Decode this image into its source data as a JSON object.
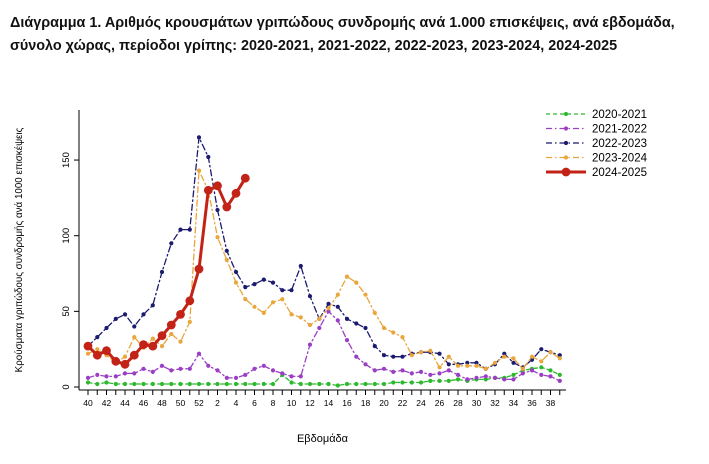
{
  "title": "Διάγραμμα 1. Αριθμός κρουσμάτων γριπώδους συνδρομής ανά 1.000 επισκέψεις, ανά εβδομάδα, σύνολο χώρας, περίοδοι γρίπης: 2020-2021, 2021-2022, 2022-2023, 2023-2024, 2024-2025",
  "chart_data": {
    "type": "line",
    "title": "Διάγραμμα 1. Αριθμός κρουσμάτων γριπώδους συνδρομής ανά 1.000 επισκέψεις, ανά εβδομάδα, σύνολο χώρας, περίοδοι γρίπης: 2020-2021, 2021-2022, 2022-2023, 2023-2024, 2024-2025",
    "xlabel": "Εβδομάδα",
    "ylabel": "Κρούσματα γριπώδους συνδρομής ανά 1000 επισκέψεις",
    "grid": false,
    "legend_position": "top-right",
    "ylim": [
      0,
      170
    ],
    "yticks": [
      0,
      50,
      100,
      150
    ],
    "week_labels": [
      40,
      41,
      42,
      43,
      44,
      45,
      46,
      47,
      48,
      49,
      50,
      51,
      52,
      1,
      2,
      3,
      4,
      5,
      6,
      7,
      8,
      9,
      10,
      11,
      12,
      13,
      14,
      15,
      16,
      17,
      18,
      19,
      20,
      21,
      22,
      23,
      24,
      25,
      26,
      27,
      28,
      29,
      30,
      31,
      32,
      33,
      34,
      35,
      36,
      37,
      38,
      39
    ],
    "x_label_every": 2,
    "series": [
      {
        "name": "2020-2021",
        "color": "#2db92d",
        "dash": "4 3",
        "line_width": 1.3,
        "marker_r": 2.1,
        "values": [
          3,
          2,
          3,
          2,
          2,
          2,
          2,
          2,
          2,
          2,
          2,
          2,
          2,
          2,
          2,
          2,
          2,
          2,
          2,
          2,
          2,
          8,
          3,
          2,
          2,
          2,
          2,
          1,
          2,
          2,
          2,
          2,
          2,
          3,
          3,
          3,
          3,
          4,
          4,
          4,
          5,
          4,
          5,
          5,
          6,
          6,
          8,
          11,
          12,
          13,
          11,
          8
        ]
      },
      {
        "name": "2021-2022",
        "color": "#9a3fc4",
        "dash": "6 3 1.5 3",
        "line_width": 1.3,
        "marker_r": 2.1,
        "values": [
          6,
          8,
          7,
          7,
          9,
          9,
          12,
          10,
          14,
          11,
          12,
          12,
          22,
          14,
          11,
          6,
          6,
          8,
          12,
          14,
          11,
          9,
          7,
          7,
          28,
          39,
          50,
          44,
          31,
          20,
          15,
          11,
          12,
          10,
          11,
          9,
          10,
          8,
          9,
          11,
          8,
          5,
          6,
          7,
          6,
          5,
          5,
          9,
          11,
          8,
          7,
          4
        ]
      },
      {
        "name": "2022-2023",
        "color": "#1b1b70",
        "dash": "6 3 1.5 3",
        "line_width": 1.3,
        "marker_r": 2.1,
        "values": [
          27,
          33,
          39,
          45,
          48,
          40,
          48,
          54,
          76,
          95,
          104,
          104,
          165,
          152,
          117,
          90,
          76,
          66,
          68,
          71,
          69,
          64,
          64,
          80,
          60,
          45,
          55,
          53,
          45,
          42,
          39,
          27,
          21,
          20,
          20,
          22,
          23,
          23,
          22,
          15,
          15,
          16,
          16,
          12,
          15,
          22,
          16,
          13,
          18,
          25,
          23,
          21
        ]
      },
      {
        "name": "2023-2024",
        "color": "#e9a63c",
        "dash": "6 3 1.5 3",
        "line_width": 1.3,
        "marker_r": 2.1,
        "values": [
          22,
          25,
          21,
          16,
          20,
          33,
          26,
          32,
          27,
          35,
          30,
          43,
          143,
          130,
          99,
          84,
          69,
          58,
          53,
          49,
          56,
          58,
          48,
          46,
          41,
          45,
          52,
          61,
          73,
          69,
          61,
          49,
          39,
          36,
          33,
          21,
          23,
          24,
          13,
          20,
          14,
          14,
          14,
          12,
          16,
          20,
          19,
          12,
          20,
          17,
          23,
          19
        ]
      },
      {
        "name": "2024-2025",
        "color": "#c32317",
        "dash": "",
        "line_width": 3,
        "marker_r": 4.4,
        "values": [
          27,
          21,
          24,
          17,
          15,
          21,
          28,
          27,
          34,
          41,
          48,
          57,
          78,
          130,
          133,
          119,
          128,
          138,
          null,
          null,
          null,
          null,
          null,
          null,
          null,
          null,
          null,
          null,
          null,
          null,
          null,
          null,
          null,
          null,
          null,
          null,
          null,
          null,
          null,
          null,
          null,
          null,
          null,
          null,
          null,
          null,
          null,
          null,
          null,
          null,
          null,
          null
        ]
      }
    ]
  }
}
